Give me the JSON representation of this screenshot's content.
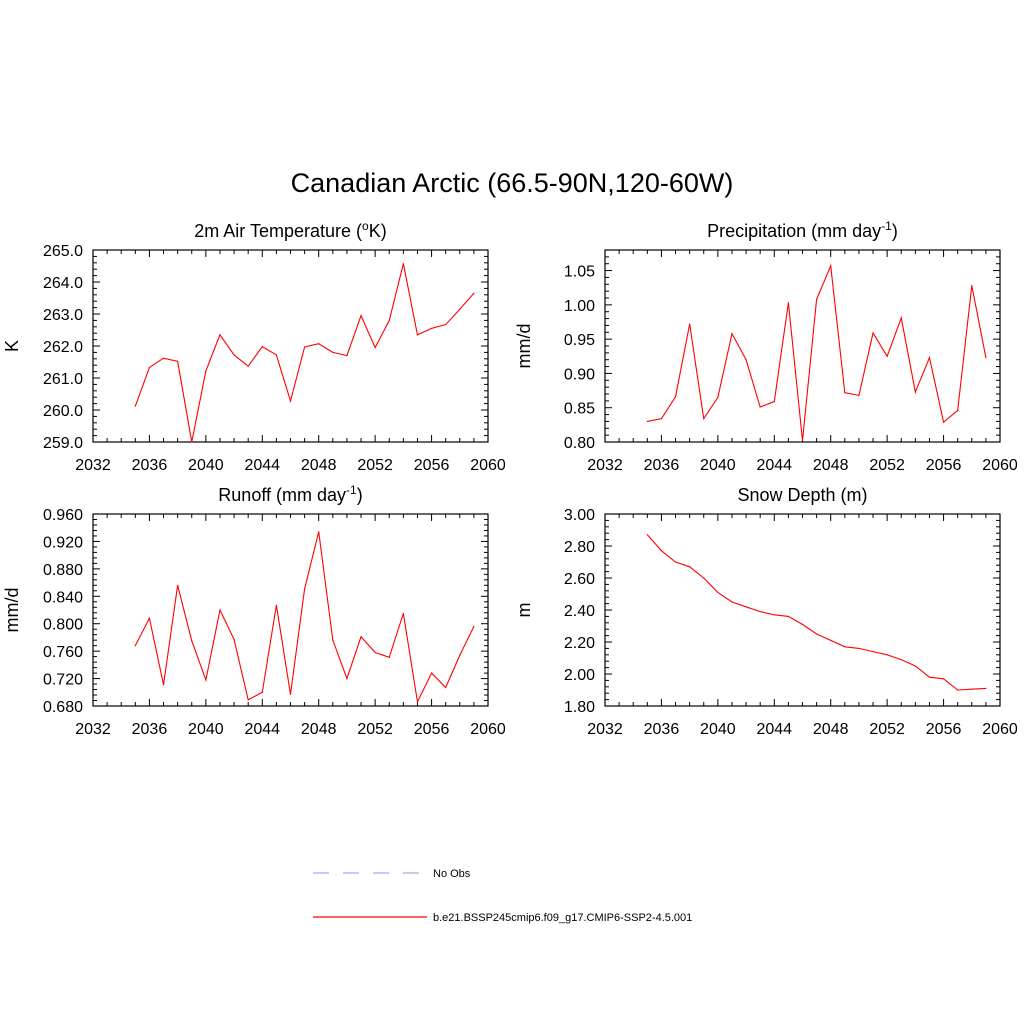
{
  "title": "Canadian Arctic (66.5-90N,120-60W)",
  "colors": {
    "model": "#ff0000",
    "obs": "#a8a8ff"
  },
  "legend": {
    "obs_label": "No Obs",
    "model_label": "b.e21.BSSP245cmip6.f09_g17.CMIP6-SSP2-4.5.001"
  },
  "chart_data": [
    {
      "type": "line",
      "title": "2m Air Temperature (oK)",
      "title_parts": [
        "2m Air Temperature (",
        "o",
        "K)"
      ],
      "ylabel": "K",
      "xlim": [
        2032,
        2060
      ],
      "xticks": [
        "2032",
        "2036",
        "2040",
        "2044",
        "2048",
        "2052",
        "2056",
        "2060"
      ],
      "ylim": [
        259.0,
        265.0
      ],
      "yticks": [
        "259.0",
        "260.0",
        "261.0",
        "262.0",
        "263.0",
        "264.0",
        "265.0"
      ],
      "x": [
        2035,
        2036,
        2037,
        2038,
        2039,
        2040,
        2041,
        2042,
        2043,
        2044,
        2045,
        2046,
        2047,
        2048,
        2049,
        2050,
        2051,
        2052,
        2053,
        2054,
        2055,
        2056,
        2057,
        2058,
        2059
      ],
      "series": [
        {
          "name": "b.e21.BSSP245cmip6.f09_g17.CMIP6-SSP2-4.5.001",
          "values": [
            260.12,
            261.33,
            261.62,
            261.52,
            259.0,
            261.22,
            262.35,
            261.72,
            261.37,
            261.98,
            261.72,
            260.28,
            261.97,
            262.07,
            261.8,
            261.7,
            262.95,
            261.95,
            262.8,
            264.57,
            262.35,
            262.55,
            262.67,
            263.15,
            263.65
          ]
        }
      ]
    },
    {
      "type": "line",
      "title": "Precipitation (mm day-1)",
      "title_parts": [
        "Precipitation (mm day",
        "-1",
        ")"
      ],
      "ylabel": "mm/d",
      "xlim": [
        2032,
        2060
      ],
      "xticks": [
        "2032",
        "2036",
        "2040",
        "2044",
        "2048",
        "2052",
        "2056",
        "2060"
      ],
      "ylim": [
        0.8,
        1.08
      ],
      "yticks": [
        "0.80",
        "0.85",
        "0.90",
        "0.95",
        "1.00",
        "1.05"
      ],
      "x": [
        2035,
        2036,
        2037,
        2038,
        2039,
        2040,
        2041,
        2042,
        2043,
        2044,
        2045,
        2046,
        2047,
        2048,
        2049,
        2050,
        2051,
        2052,
        2053,
        2054,
        2055,
        2056,
        2057,
        2058,
        2059
      ],
      "series": [
        {
          "name": "b.e21.BSSP245cmip6.f09_g17.CMIP6-SSP2-4.5.001",
          "values": [
            0.83,
            0.834,
            0.866,
            0.972,
            0.834,
            0.865,
            0.958,
            0.92,
            0.851,
            0.859,
            1.003,
            0.802,
            1.008,
            1.057,
            0.872,
            0.868,
            0.959,
            0.925,
            0.981,
            0.873,
            0.923,
            0.829,
            0.846,
            1.028,
            0.923
          ]
        }
      ]
    },
    {
      "type": "line",
      "title": "Runoff (mm day-1)",
      "title_parts": [
        "Runoff (mm day",
        "-1",
        ")"
      ],
      "ylabel": "mm/d",
      "xlim": [
        2032,
        2060
      ],
      "xticks": [
        "2032",
        "2036",
        "2040",
        "2044",
        "2048",
        "2052",
        "2056",
        "2060"
      ],
      "ylim": [
        0.68,
        0.96
      ],
      "yticks": [
        "0.680",
        "0.720",
        "0.760",
        "0.800",
        "0.840",
        "0.880",
        "0.920",
        "0.960"
      ],
      "x": [
        2035,
        2036,
        2037,
        2038,
        2039,
        2040,
        2041,
        2042,
        2043,
        2044,
        2045,
        2046,
        2047,
        2048,
        2049,
        2050,
        2051,
        2052,
        2053,
        2054,
        2055,
        2056,
        2057,
        2058,
        2059
      ],
      "series": [
        {
          "name": "b.e21.BSSP245cmip6.f09_g17.CMIP6-SSP2-4.5.001",
          "values": [
            0.768,
            0.808,
            0.711,
            0.856,
            0.775,
            0.718,
            0.82,
            0.777,
            0.689,
            0.7,
            0.827,
            0.697,
            0.851,
            0.934,
            0.776,
            0.72,
            0.781,
            0.758,
            0.751,
            0.815,
            0.686,
            0.728,
            0.707,
            0.754,
            0.796
          ]
        }
      ]
    },
    {
      "type": "line",
      "title": "Snow Depth (m)",
      "title_parts": [
        "Snow Depth (m)",
        "",
        ""
      ],
      "ylabel": "m",
      "xlim": [
        2032,
        2060
      ],
      "xticks": [
        "2032",
        "2036",
        "2040",
        "2044",
        "2048",
        "2052",
        "2056",
        "2060"
      ],
      "ylim": [
        1.8,
        3.0
      ],
      "yticks": [
        "1.80",
        "2.00",
        "2.20",
        "2.40",
        "2.60",
        "2.80",
        "3.00"
      ],
      "x": [
        2035,
        2036,
        2037,
        2038,
        2039,
        2040,
        2041,
        2042,
        2043,
        2044,
        2045,
        2046,
        2047,
        2048,
        2049,
        2050,
        2051,
        2052,
        2053,
        2054,
        2055,
        2056,
        2057,
        2058,
        2059
      ],
      "series": [
        {
          "name": "b.e21.BSSP245cmip6.f09_g17.CMIP6-SSP2-4.5.001",
          "values": [
            2.87,
            2.77,
            2.7,
            2.67,
            2.6,
            2.51,
            2.45,
            2.42,
            2.39,
            2.37,
            2.36,
            2.31,
            2.25,
            2.21,
            2.17,
            2.16,
            2.14,
            2.12,
            2.09,
            2.05,
            1.98,
            1.97,
            1.9,
            1.905,
            1.91
          ]
        }
      ]
    }
  ]
}
